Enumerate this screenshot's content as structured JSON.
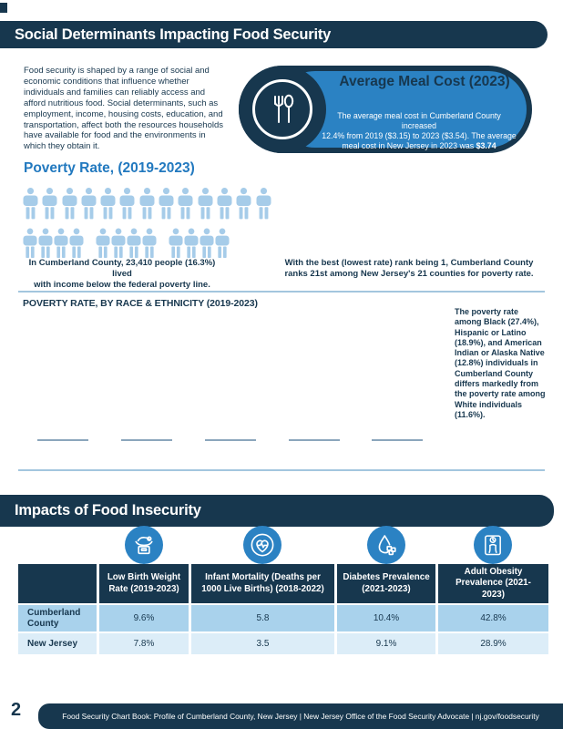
{
  "colors": {
    "navy": "#17374e",
    "accent_blue": "#2b82c3",
    "heading_blue": "#2279bf",
    "person_blue": "#a6cce9",
    "row_light_blue": "#a9d2ec",
    "row_pale_blue": "#dcedf8",
    "divider_blue": "#a3c6de",
    "tick_gray": "#8ba6bc"
  },
  "header": {
    "title": "Social Determinants Impacting Food Security"
  },
  "intro": {
    "text": "Food security is shaped by a range of social and\neconomic conditions that influence whether\nindividuals and families can reliably access and\nafford nutritious food. Social determinants, such as\nemployment, income, housing costs, education, and\ntransportation, affect both the resources households\nhave available for food and the environments in\nwhich they obtain it."
  },
  "meal_cost": {
    "title": "Average Meal Cost (2023)",
    "body_text": "The average meal cost in Cumberland County increased\n12.4% from 2019 ($3.15) to 2023 ($3.54). The average\nmeal cost in New Jersey in 2023 was ",
    "body_bold": "$3.74",
    "icon": "fork-spoon-icon"
  },
  "poverty": {
    "heading": "Poverty Rate, (2019-2023)",
    "pictogram": {
      "row1_count": 13,
      "row2_groups": [
        4,
        4,
        4
      ],
      "total_people_icons": 25
    },
    "caption": "In Cumberland County, 23,410 people (16.3%) lived\nwith income below the federal poverty line.",
    "rank_note": "With the best (lowest rate) rank being 1, Cumberland County\nranks 21st among New Jersey's 21 counties for poverty rate."
  },
  "race_section": {
    "heading": "POVERTY RATE, BY RACE & ETHNICITY (2019-2023)",
    "note": "The poverty rate\namong Black (27.4%),\nHispanic or Latino\n(18.9%), and American\nIndian or Alaska Native\n(12.8%) individuals in\nCumberland County\ndiffers markedly from\nthe poverty rate among\nWhite individuals\n(11.6%).",
    "baseline_tick_count": 5
  },
  "impacts": {
    "heading": "Impacts of Food Insecurity",
    "table": {
      "columns": [
        "",
        "Low Birth Weight\nRate (2019-2023)",
        "Infant Mortality (Deaths per\n1000 Live Births) (2018-2022)",
        "Diabetes Prevalence\n(2021-2023)",
        "Adult Obesity\nPrevalence (2021-\n2023)"
      ],
      "icons": [
        "baby-scale-icon",
        "heart-pulse-icon",
        "diabetes-drop-icon",
        "obesity-scale-icon"
      ],
      "rows": [
        {
          "label": "Cumberland\nCounty",
          "values": [
            "9.6%",
            "5.8",
            "10.4%",
            "42.8%"
          ]
        },
        {
          "label": "New Jersey",
          "values": [
            "7.8%",
            "3.5",
            "9.1%",
            "28.9%"
          ]
        }
      ]
    }
  },
  "footer": {
    "page_number": "2",
    "text": "Food Security Chart Book: Profile of Cumberland County, New Jersey  |  New Jersey Office of the Food Security Advocate  |  nj.gov/foodsecurity"
  }
}
